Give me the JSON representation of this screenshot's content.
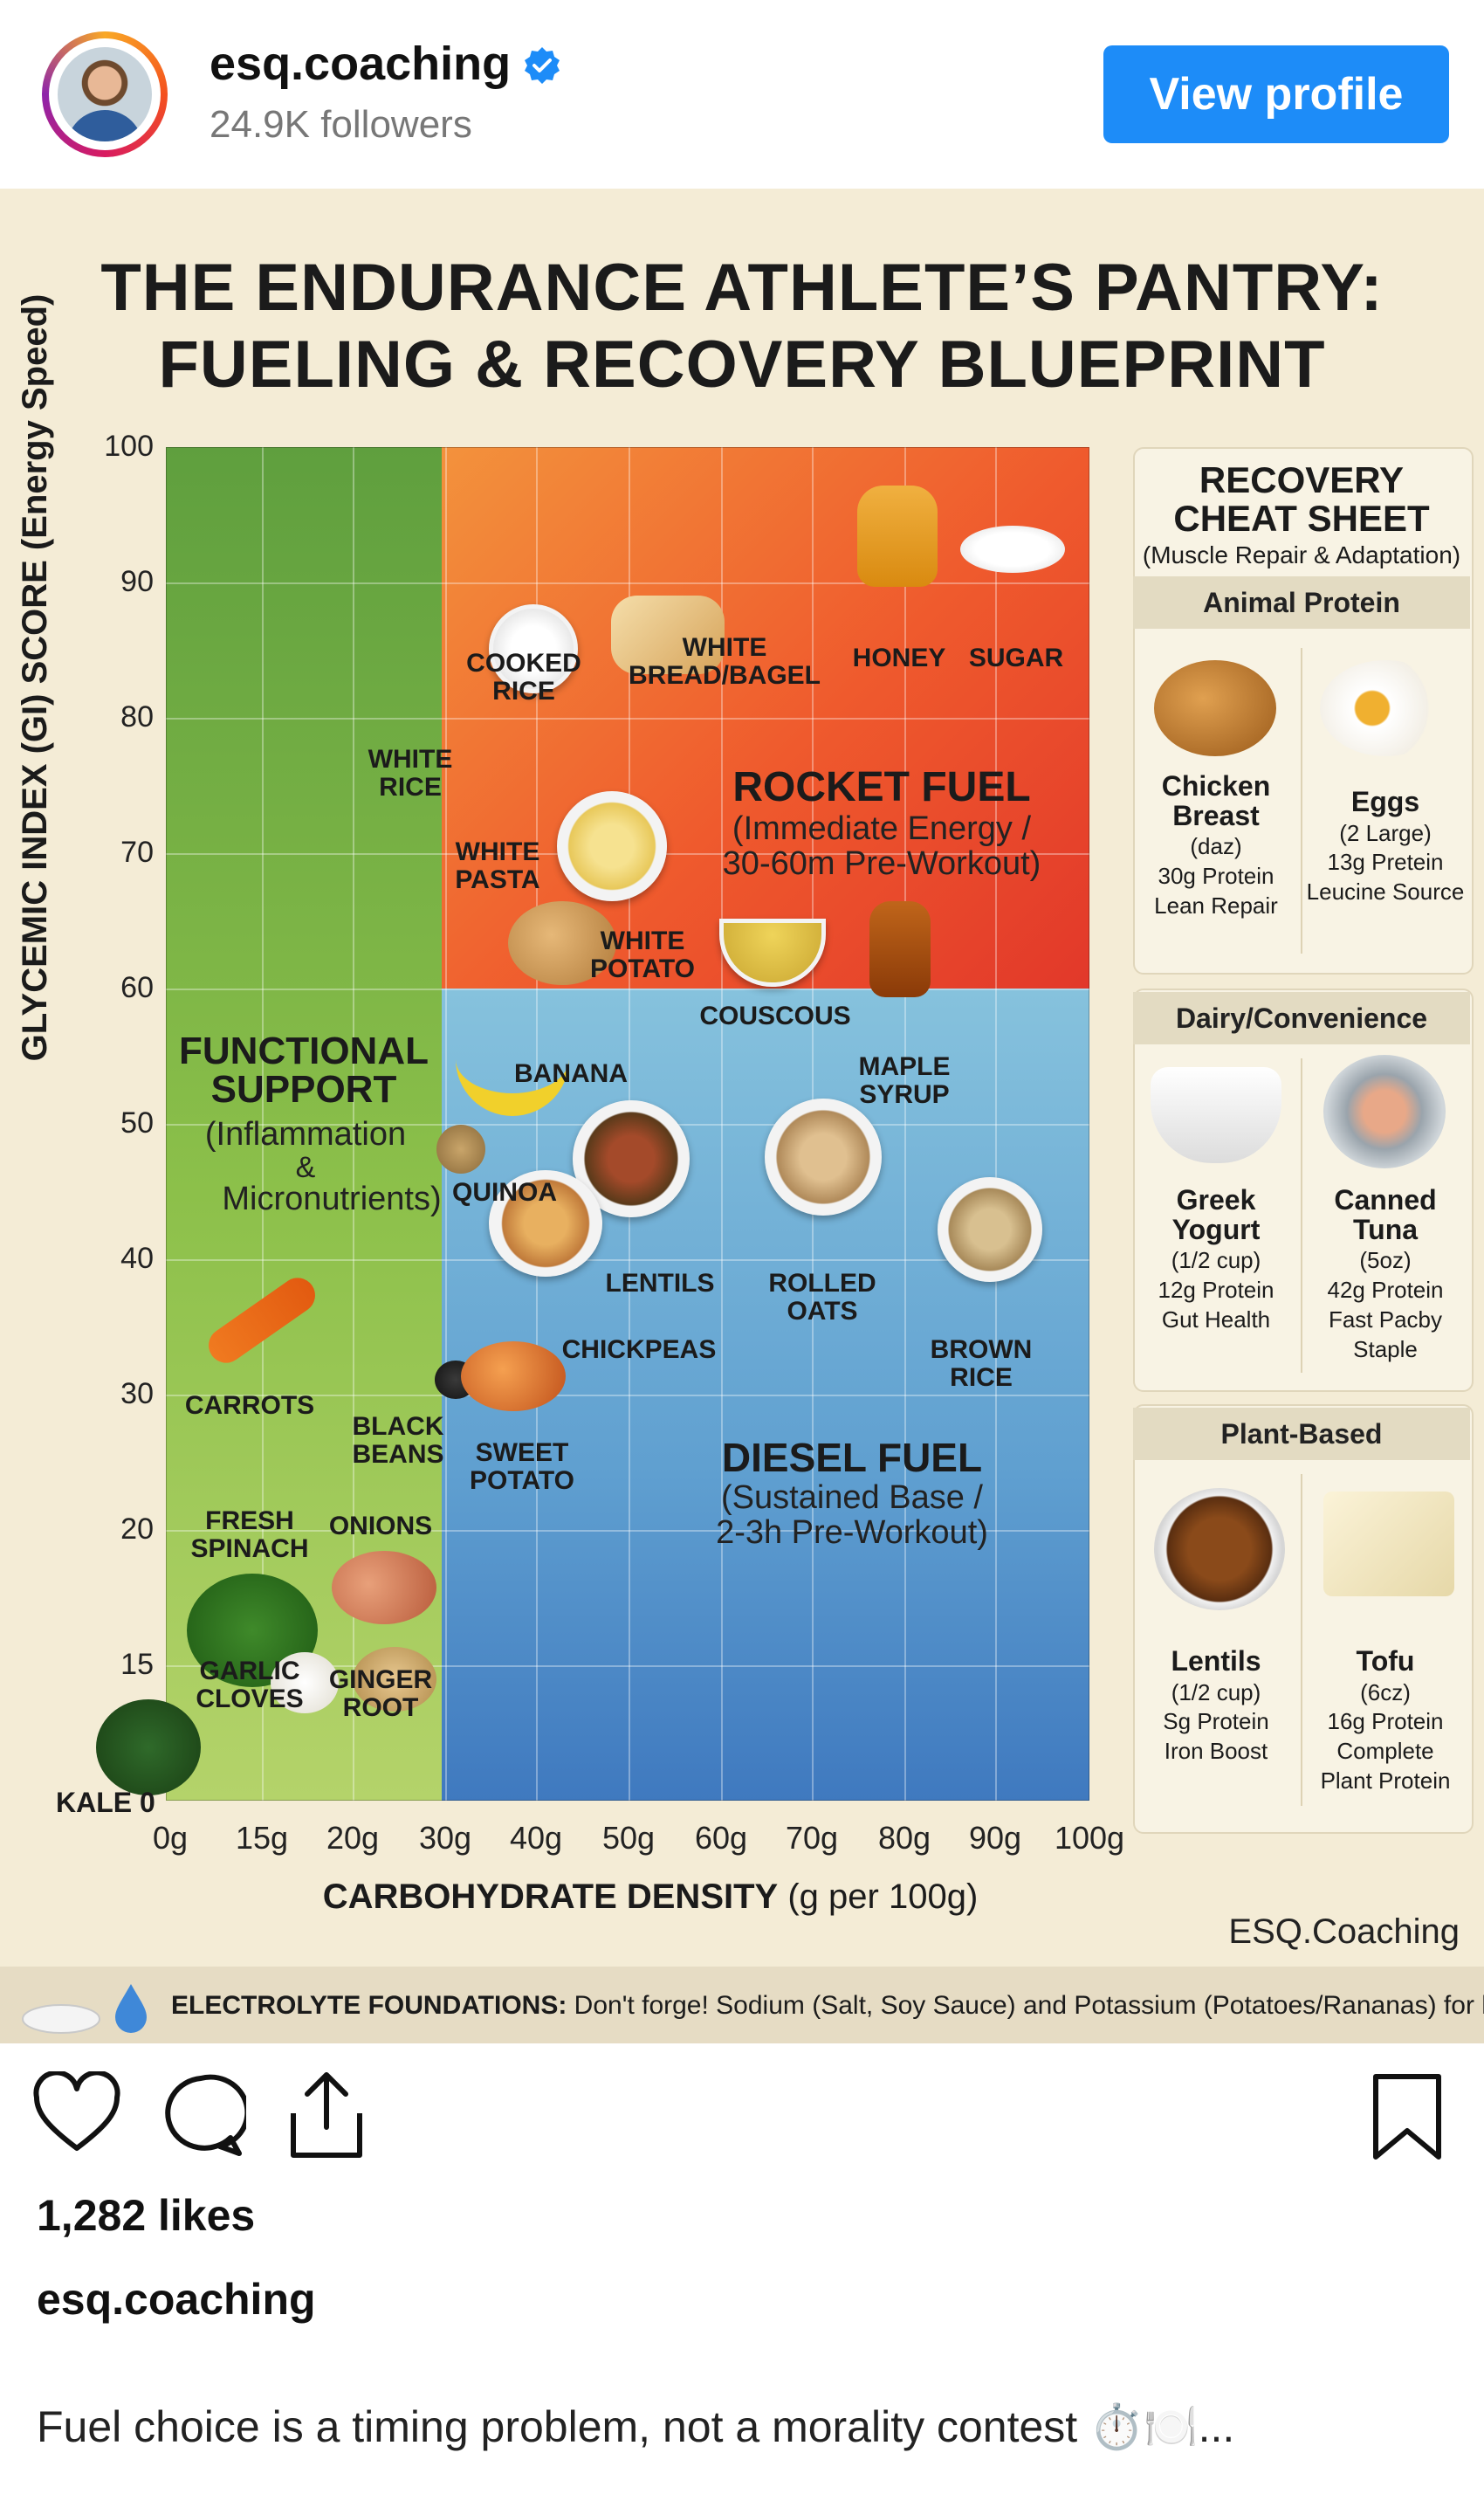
{
  "header": {
    "username": "esq.coaching",
    "followers": "24.9K followers",
    "view_profile": "View profile"
  },
  "poster": {
    "title_line1": "THE ENDURANCE ATHLETE’S PANTRY:",
    "title_line2": "FUELING & RECOVERY BLUEPRINT",
    "brand": "ESQ.Coaching",
    "footer_bold": "ELECTROLYTE FOUNDATIONS:",
    "footer_rest": " Don't forge! Sodium (Salt, Soy Sauce) and Potassium (Potatoes/Rananas) for hydration."
  },
  "chart_data": {
    "type": "scatter",
    "title": "THE ENDURANCE ATHLETE’S PANTRY: FUELING & RECOVERY BLUEPRINT",
    "xlabel_bold": "CARBOHYDRATE DENSITY",
    "xlabel_rest": " (g per 100g)",
    "ylabel": "GLYCEMIC INDEX (GI) SCORE (Energy Speed)",
    "x_ticks": [
      "0g",
      "15g",
      "20g",
      "30g",
      "40g",
      "50g",
      "60g",
      "70g",
      "80g",
      "90g",
      "100g"
    ],
    "y_ticks": [
      "100",
      "90",
      "80",
      "70",
      "60",
      "50",
      "40",
      "30",
      "20",
      "15"
    ],
    "y_zero_label": "KALE 0",
    "zones": [
      {
        "name": "FUNCTIONAL SUPPORT",
        "subtitle_lines": [
          "(Inflammation",
          "&",
          "Micronutrients)"
        ],
        "color": "#7fb347"
      },
      {
        "name": "ROCKET FUEL",
        "subtitle_lines": [
          "(Immediate Energy /",
          "30-60m Pre-Workout)"
        ],
        "color": "#ef5a2d"
      },
      {
        "name": "DIESEL FUEL",
        "subtitle_lines": [
          "(Sustained Base /",
          "2-3h Pre-Workout)"
        ],
        "color": "#5f9fd0"
      }
    ],
    "foods": [
      {
        "label": "COOKED RICE",
        "lines": [
          "COOKED",
          "RICE"
        ]
      },
      {
        "label": "WHITE BREAD/BAGEL",
        "lines": [
          "WHITE",
          "BREAD/BAGEL"
        ]
      },
      {
        "label": "HONEY",
        "lines": [
          "HONEY"
        ]
      },
      {
        "label": "SUGAR",
        "lines": [
          "SUGAR"
        ]
      },
      {
        "label": "WHITE RICE",
        "lines": [
          "WHITE",
          "RICE"
        ]
      },
      {
        "label": "WHITE PASTA",
        "lines": [
          "WHITE",
          "PASTA"
        ]
      },
      {
        "label": "WHITE POTATO",
        "lines": [
          "WHITE",
          "POTATO"
        ]
      },
      {
        "label": "COUSCOUS",
        "lines": [
          "COUSCOUS"
        ]
      },
      {
        "label": "MAPLE SYRUP",
        "lines": [
          "MAPLE",
          "SYRUP"
        ]
      },
      {
        "label": "BANANA",
        "lines": [
          "BANANA"
        ]
      },
      {
        "label": "QUINOA",
        "lines": [
          "QUINOA"
        ]
      },
      {
        "label": "LENTILS",
        "lines": [
          "LENTILS"
        ]
      },
      {
        "label": "ROLLED OATS",
        "lines": [
          "ROLLED",
          "OATS"
        ]
      },
      {
        "label": "CHICKPEAS",
        "lines": [
          "CHICKPEAS"
        ]
      },
      {
        "label": "BROWN RICE",
        "lines": [
          "BROWN",
          "RICE"
        ]
      },
      {
        "label": "CARROTS",
        "lines": [
          "CARROTS"
        ]
      },
      {
        "label": "BLACK BEANS",
        "lines": [
          "BLACK",
          "BEANS"
        ]
      },
      {
        "label": "SWEET POTATO",
        "lines": [
          "SWEET",
          "POTATO"
        ]
      },
      {
        "label": "FRESH SPINACH",
        "lines": [
          "FRESH",
          "SPINACH"
        ]
      },
      {
        "label": "ONIONS",
        "lines": [
          "ONIONS"
        ]
      },
      {
        "label": "GARLIC CLOVES",
        "lines": [
          "GARLIC",
          "CLOVES"
        ]
      },
      {
        "label": "GINGER ROOT",
        "lines": [
          "GINGER",
          "ROOT"
        ]
      }
    ]
  },
  "sidebar": {
    "title_line1": "RECOVERY",
    "title_line2": "CHEAT SHEET",
    "subtitle": "(Muscle Repair & Adaptation)",
    "sections": [
      {
        "name": "Animal Protein",
        "items": [
          {
            "name_lines": [
              "Chicken",
              "Breast"
            ],
            "desc_lines": [
              "(daz)",
              "30g Protein",
              "Lean Repair"
            ]
          },
          {
            "name_lines": [
              "Eggs"
            ],
            "desc_lines": [
              "(2 Large)",
              "13g Pretein",
              "Leucine Source"
            ]
          }
        ]
      },
      {
        "name": "Dairy/Convenience",
        "items": [
          {
            "name_lines": [
              "Greek",
              "Yogurt"
            ],
            "desc_lines": [
              "(1/2 cup)",
              "12g Protein",
              "Gut Health"
            ]
          },
          {
            "name_lines": [
              "Canned",
              "Tuna"
            ],
            "desc_lines": [
              "(5oz)",
              "42g Protein",
              "Fast Pacby",
              "Staple"
            ]
          }
        ]
      },
      {
        "name": "Plant-Based",
        "items": [
          {
            "name_lines": [
              "Lentils"
            ],
            "desc_lines": [
              "(1/2 cup)",
              "Sg Protein",
              "Iron Boost"
            ]
          },
          {
            "name_lines": [
              "Tofu"
            ],
            "desc_lines": [
              "(6cz)",
              "16g Protein",
              "Complete",
              "Plant Protein"
            ]
          }
        ]
      }
    ]
  },
  "actions": {
    "like_icon": "heart-icon",
    "comment_icon": "comment-icon",
    "share_icon": "share-icon",
    "save_icon": "bookmark-icon"
  },
  "post": {
    "likes": "1,282 likes",
    "caption_user": "esq.coaching",
    "caption": "Fuel choice is a timing problem, not a morality contest ⏱️🍽️..."
  }
}
